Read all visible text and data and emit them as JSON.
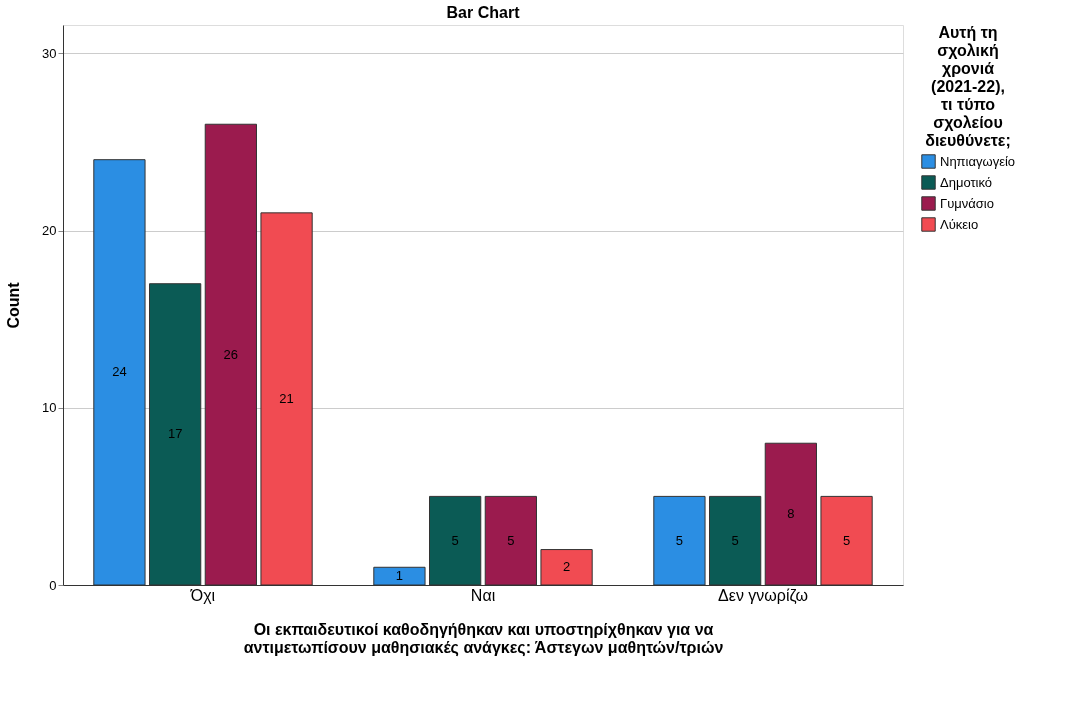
{
  "chart_data": {
    "type": "bar",
    "title": "Bar Chart",
    "xlabel": "Οι εκπαιδευτικοί καθοδηγήθηκαν και υποστηρίχθηκαν για να αντιμετωπίσουν μαθησιακές ανάγκες: Άστεγων μαθητών/τριών",
    "ylabel": "Count",
    "legend_title": "Αυτή τη σχολική χρονιά (2021-22), τι τύπο σχολείου διευθύνετε;",
    "categories": [
      "Όχι",
      "Ναι",
      "Δεν γνωρίζω"
    ],
    "series": [
      {
        "name": "Νηπιαγωγείο",
        "color": "#2b8ee3",
        "values": [
          24,
          1,
          5
        ]
      },
      {
        "name": "Δημοτικό",
        "color": "#0b5b55",
        "values": [
          17,
          5,
          5
        ]
      },
      {
        "name": "Γυμνάσιο",
        "color": "#9b1b4e",
        "values": [
          26,
          5,
          8
        ]
      },
      {
        "name": "Λύκειο",
        "color": "#f14b52",
        "values": [
          21,
          2,
          5
        ]
      }
    ],
    "ylim": [
      0,
      31.6
    ],
    "yticks": [
      0,
      10,
      20,
      30
    ],
    "grid": "y",
    "legend": "right",
    "data_labels": true
  }
}
